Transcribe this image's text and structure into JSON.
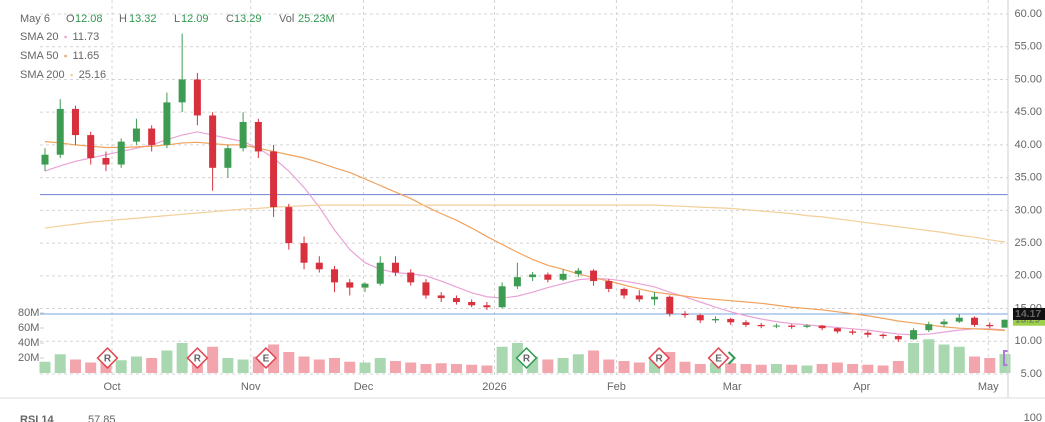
{
  "chart_data": {
    "type": "candlestick",
    "header": {
      "date": "May 6",
      "o_label": "O",
      "o": "12.08",
      "h_label": "H",
      "h": "13.32",
      "l_label": "L",
      "l": "12.09",
      "c_label": "C",
      "c": "13.29",
      "vol_label": "Vol",
      "vol": "25.23M"
    },
    "up_color": "#3d9c52",
    "down_color": "#d8313d",
    "vol_up_color": "#a9d8b0",
    "vol_down_color": "#f2a5ad",
    "xlim": [
      -1,
      64
    ],
    "xticks": [
      {
        "value": 4.4,
        "label": "Oct"
      },
      {
        "value": 13.5,
        "label": "Nov"
      },
      {
        "value": 20.9,
        "label": "Dec"
      },
      {
        "value": 29.5,
        "label": "2026"
      },
      {
        "value": 37.5,
        "label": "Feb"
      },
      {
        "value": 45.1,
        "label": "Mar"
      },
      {
        "value": 53.6,
        "label": "Apr"
      },
      {
        "value": 61.9,
        "label": "May"
      }
    ],
    "ylim": [
      5,
      60
    ],
    "yticks": [
      {
        "value": 60,
        "label": "60.00"
      },
      {
        "value": 55,
        "label": "55.00"
      },
      {
        "value": 50,
        "label": "50.00"
      },
      {
        "value": 45,
        "label": "45.00"
      },
      {
        "value": 40,
        "label": "40.00"
      },
      {
        "value": 35,
        "label": "35.00"
      },
      {
        "value": 30,
        "label": "30.00"
      },
      {
        "value": 25,
        "label": "25.00"
      },
      {
        "value": 20,
        "label": "20.00"
      },
      {
        "value": 15,
        "label": "15.00"
      },
      {
        "value": 10,
        "label": "10.00"
      },
      {
        "value": 5,
        "label": "5.00"
      }
    ],
    "grid": true,
    "open": [
      37,
      38.5,
      45.5,
      41.5,
      38,
      37,
      40.5,
      42.5,
      40,
      46.5,
      50,
      44.5,
      36.5,
      39.5,
      43.5,
      39,
      30.5,
      25,
      22,
      21,
      19,
      18.2,
      18.8,
      22,
      20.5,
      19,
      17,
      16.6,
      16,
      15.5,
      15.2,
      18.4,
      19.8,
      20.2,
      19.4,
      20.3,
      20.8,
      19.2,
      18,
      17,
      16.4,
      16.8,
      14.2,
      14,
      13.2,
      13.4,
      12.9,
      12.5,
      12.3,
      12.4,
      12.2,
      12.4,
      12,
      11.5,
      11.3,
      11,
      10.8,
      10.3,
      11.7,
      12.6,
      13,
      13.6,
      12.5,
      12.08
    ],
    "high": [
      39.5,
      47,
      46,
      42,
      39,
      41,
      44,
      43,
      48,
      57,
      51,
      45,
      40,
      45,
      44,
      40,
      31,
      26,
      23,
      21.5,
      19.5,
      19,
      23,
      23,
      21,
      19.5,
      17.5,
      17,
      16.4,
      16,
      19,
      22,
      20.6,
      20.5,
      21,
      21.2,
      21,
      19.5,
      18.2,
      17.8,
      17.5,
      17,
      14.6,
      14.2,
      13.8,
      13.6,
      13.2,
      12.8,
      12.7,
      12.6,
      12.6,
      12.5,
      12.1,
      11.8,
      11.6,
      11.2,
      10.9,
      12,
      13,
      13.4,
      14.2,
      13.8,
      12.9,
      13.32
    ],
    "low": [
      36,
      38,
      40,
      37,
      36,
      36.5,
      40,
      39,
      39.5,
      45,
      43,
      33,
      35,
      39,
      38,
      29,
      24,
      21,
      20.5,
      17.5,
      17,
      17.5,
      18.5,
      20,
      18.5,
      16.5,
      16,
      15.6,
      15.2,
      14.8,
      15,
      18,
      19.2,
      19,
      19.2,
      19.8,
      18.5,
      17.5,
      16.5,
      16,
      15.5,
      13.8,
      13.6,
      12.8,
      12.8,
      12.5,
      12.2,
      12,
      12,
      11.9,
      12,
      11.7,
      11.2,
      11,
      10.6,
      10.4,
      9.9,
      10.2,
      11.4,
      12.2,
      12.8,
      12.2,
      12,
      12.09
    ],
    "close": [
      38.5,
      45.5,
      41.5,
      38,
      37,
      40.5,
      42.5,
      40,
      46.5,
      50,
      44.5,
      36.5,
      39.5,
      43.5,
      39,
      30.5,
      25,
      22,
      21,
      19,
      18.2,
      18.8,
      22,
      20.5,
      19,
      17,
      16.6,
      16,
      15.5,
      15.2,
      18.4,
      19.8,
      20.2,
      19.4,
      20.3,
      20.8,
      19.2,
      18,
      17,
      16.4,
      16.8,
      14.2,
      14,
      13.2,
      13.4,
      12.9,
      12.5,
      12.3,
      12.4,
      12.2,
      12.4,
      12,
      11.5,
      11.3,
      11,
      10.8,
      10.3,
      11.7,
      12.6,
      13,
      13.6,
      12.5,
      12.3,
      13.29
    ],
    "volume": [
      15000000,
      25000000,
      18000000,
      14000000,
      16000000,
      17000000,
      22000000,
      20000000,
      30000000,
      40000000,
      28000000,
      35000000,
      20000000,
      18000000,
      22000000,
      38000000,
      28000000,
      22000000,
      18000000,
      20000000,
      15000000,
      14000000,
      20000000,
      16000000,
      14000000,
      12000000,
      13000000,
      12000000,
      11000000,
      10000000,
      35000000,
      40000000,
      22000000,
      18000000,
      20000000,
      25000000,
      30000000,
      18000000,
      16000000,
      14000000,
      18000000,
      28000000,
      15000000,
      12000000,
      14000000,
      13000000,
      12000000,
      11000000,
      12000000,
      11000000,
      10000000,
      12000000,
      14000000,
      12000000,
      11000000,
      10000000,
      16000000,
      40000000,
      45000000,
      38000000,
      35000000,
      22000000,
      20000000,
      25230000
    ],
    "vlim": [
      0,
      80000000
    ],
    "vticks": [
      {
        "value": 80000000,
        "label": "80M"
      },
      {
        "value": 60000000,
        "label": "60M"
      },
      {
        "value": 40000000,
        "label": "40M"
      },
      {
        "value": 20000000,
        "label": "20M"
      }
    ],
    "series": [
      {
        "name": "SMA 20",
        "last": 11.73,
        "color": "#e9a3d6",
        "values": [
          36,
          36.8,
          37.5,
          38,
          38.5,
          39,
          39.5,
          40,
          40.8,
          41.5,
          42,
          41.5,
          41,
          40.5,
          39.5,
          38,
          36,
          33.5,
          30.5,
          27,
          24,
          22,
          21,
          20.5,
          20.3,
          20,
          19.2,
          18.3,
          17.4,
          16.8,
          16.6,
          16.9,
          17.5,
          18.2,
          18.8,
          19.4,
          19.6,
          19.5,
          19.2,
          18.8,
          18.3,
          17.5,
          16.8,
          16,
          15.2,
          14.5,
          13.9,
          13.4,
          13,
          12.7,
          12.5,
          12.3,
          12.1,
          11.9,
          11.7,
          11.4,
          11.1,
          11,
          11.1,
          11.4,
          11.7,
          11.9,
          11.9,
          11.73
        ]
      },
      {
        "name": "SMA 50",
        "last": 11.65,
        "color": "#f0a35e",
        "values": [
          40.5,
          40.3,
          40,
          39.8,
          39.6,
          39.6,
          39.7,
          39.8,
          40,
          40.3,
          40.4,
          40.2,
          40,
          40,
          39.5,
          39,
          38.5,
          38,
          37.3,
          36.5,
          35.8,
          34.8,
          33.8,
          32.8,
          31.8,
          30.6,
          29.5,
          28.5,
          27.3,
          26,
          24.8,
          23.6,
          22.5,
          21.6,
          21,
          20.3,
          19.7,
          19.2,
          18.6,
          18,
          17.5,
          17.2,
          16.9,
          16.6,
          16.4,
          16.2,
          16,
          15.8,
          15.5,
          15.2,
          15,
          14.8,
          14.5,
          14.2,
          13.9,
          13.5,
          13.1,
          12.8,
          12.5,
          12.2,
          12,
          11.9,
          11.8,
          11.65
        ]
      },
      {
        "name": "SMA 200",
        "last": 25.16,
        "color": "#f3cf9a",
        "values": [
          27.3,
          27.6,
          27.9,
          28.2,
          28.4,
          28.6,
          28.8,
          29,
          29.2,
          29.4,
          29.6,
          29.8,
          30,
          30.2,
          30.3,
          30.5,
          30.6,
          30.7,
          30.8,
          30.8,
          30.8,
          30.8,
          30.8,
          30.8,
          30.8,
          30.8,
          30.8,
          30.8,
          30.8,
          30.8,
          30.8,
          30.8,
          30.8,
          30.8,
          30.8,
          30.8,
          30.8,
          30.8,
          30.8,
          30.8,
          30.8,
          30.7,
          30.6,
          30.5,
          30.4,
          30.3,
          30.1,
          29.9,
          29.7,
          29.5,
          29.2,
          29,
          28.7,
          28.4,
          28.1,
          27.8,
          27.5,
          27.2,
          26.9,
          26.6,
          26.2,
          25.9,
          25.5,
          25.16
        ]
      }
    ],
    "price_lines": [
      {
        "value": 32.4,
        "color": "#6f7fd6"
      },
      {
        "value": 14.17,
        "color": "#7aa7e0"
      }
    ],
    "price_box": 14.17,
    "events": [
      {
        "index": 4.1,
        "label": "R",
        "color": "#e0454f"
      },
      {
        "index": 10,
        "label": "R",
        "color": "#e0454f"
      },
      {
        "index": 14.5,
        "label": "E",
        "color": "#e0454f"
      },
      {
        "index": 31.6,
        "label": "R",
        "color": "#2f9a52"
      },
      {
        "index": 40.3,
        "label": "R",
        "color": "#e0454f"
      },
      {
        "index": 44.2,
        "label": "E",
        "color": "#e0454f"
      }
    ],
    "rsi": {
      "name": "RSI 14",
      "value": "57.85",
      "top_tick": 100
    }
  }
}
